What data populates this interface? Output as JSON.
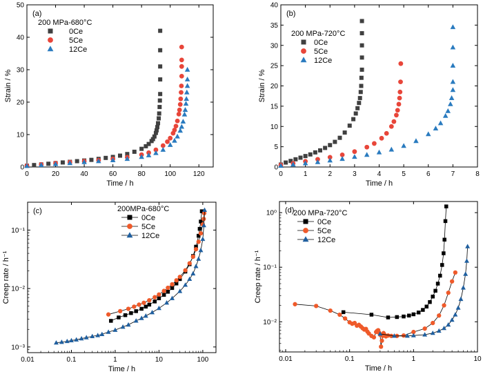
{
  "colors": {
    "0Ce": "#404040",
    "5Ce": "#e8463a",
    "12Ce": "#2a7bbf"
  },
  "colors_cd": {
    "0Ce": "#000000",
    "5Ce": "#ef5a2a",
    "12Ce": "#1f5f9f"
  },
  "chart_data": [
    {
      "type": "scatter",
      "panel": "(a)",
      "legend_title": "200 MPa-680°C",
      "xlabel": "Time / h",
      "ylabel": "Strain / %",
      "xlim": [
        0,
        130
      ],
      "ylim": [
        0,
        50
      ],
      "xticks": [
        0,
        20,
        40,
        60,
        80,
        100,
        120
      ],
      "yticks": [
        0,
        10,
        20,
        30,
        40,
        50
      ],
      "series": [
        {
          "name": "0Ce",
          "marker": "square",
          "x": [
            0,
            5,
            10,
            15,
            20,
            25,
            30,
            35,
            40,
            45,
            50,
            55,
            60,
            65,
            70,
            75,
            80,
            83,
            85,
            87,
            88,
            89,
            90,
            90.5,
            91,
            91.5,
            92,
            92.3,
            92.6,
            92.8,
            93,
            93,
            93,
            93,
            93
          ],
          "y": [
            0.4,
            0.6,
            0.8,
            1.0,
            1.2,
            1.4,
            1.6,
            1.8,
            2.0,
            2.2,
            2.5,
            2.8,
            3.1,
            3.5,
            4.0,
            4.7,
            5.6,
            6.4,
            7.1,
            8.0,
            8.6,
            9.4,
            10.5,
            11.3,
            12.3,
            13.5,
            15.0,
            16.5,
            18.5,
            20.5,
            22.5,
            27,
            31,
            36,
            42
          ]
        },
        {
          "name": "5Ce",
          "marker": "circle",
          "x": [
            0,
            10,
            20,
            30,
            40,
            50,
            60,
            70,
            80,
            85,
            90,
            95,
            98,
            100,
            102,
            103,
            104,
            105,
            106,
            106.5,
            107,
            107.3,
            107.6,
            107.8,
            108,
            108,
            108,
            108
          ],
          "y": [
            0.4,
            0.8,
            1.2,
            1.5,
            1.8,
            2.1,
            2.5,
            3.0,
            3.8,
            4.4,
            5.3,
            6.6,
            7.8,
            8.9,
            10.4,
            11.4,
            12.6,
            14.2,
            16.3,
            17.6,
            19.3,
            21,
            23,
            25,
            28,
            31,
            33,
            37
          ]
        },
        {
          "name": "12Ce",
          "marker": "triangle",
          "x": [
            0,
            10,
            20,
            30,
            40,
            50,
            60,
            70,
            80,
            85,
            90,
            95,
            100,
            103,
            105,
            107,
            108,
            109,
            110,
            110.5,
            111,
            111.3,
            111.6,
            112,
            112,
            112
          ],
          "y": [
            0.3,
            0.6,
            0.9,
            1.2,
            1.5,
            1.8,
            2.1,
            2.5,
            3.1,
            3.6,
            4.3,
            5.3,
            6.8,
            8.1,
            9.4,
            11.2,
            12.4,
            14.0,
            16.2,
            17.6,
            19.5,
            21,
            23,
            25,
            27,
            30
          ]
        }
      ]
    },
    {
      "type": "scatter",
      "panel": "(b)",
      "legend_title": "200 MPa-720°C",
      "xlabel": "Time / h",
      "ylabel": "Strain / %",
      "xlim": [
        0,
        8
      ],
      "ylim": [
        0,
        40
      ],
      "xticks": [
        0,
        1,
        2,
        3,
        4,
        5,
        6,
        7,
        8
      ],
      "yticks": [
        0,
        5,
        10,
        15,
        20,
        25,
        30,
        35,
        40
      ],
      "series": [
        {
          "name": "0Ce",
          "marker": "square",
          "x": [
            0,
            0.2,
            0.4,
            0.6,
            0.8,
            1.0,
            1.2,
            1.4,
            1.6,
            1.8,
            2.0,
            2.2,
            2.4,
            2.6,
            2.8,
            2.95,
            3.05,
            3.12,
            3.18,
            3.22,
            3.25,
            3.27,
            3.28,
            3.3,
            3.3,
            3.3,
            3.3,
            3.3
          ],
          "y": [
            0.6,
            1.1,
            1.5,
            1.9,
            2.3,
            2.7,
            3.1,
            3.6,
            4.1,
            4.7,
            5.4,
            6.2,
            7.2,
            8.5,
            10.2,
            11.8,
            13.2,
            14.5,
            15.8,
            17.0,
            18.5,
            20,
            22,
            24,
            27,
            30,
            33,
            36
          ]
        },
        {
          "name": "5Ce",
          "marker": "circle",
          "x": [
            0,
            0.5,
            1.0,
            1.5,
            2.0,
            2.5,
            3.0,
            3.5,
            3.8,
            4.1,
            4.3,
            4.5,
            4.6,
            4.7,
            4.75,
            4.8,
            4.83,
            4.85,
            4.87,
            4.88
          ],
          "y": [
            0.5,
            0.9,
            1.4,
            1.9,
            2.4,
            3.0,
            3.8,
            4.9,
            5.8,
            7.1,
            8.3,
            10.0,
            11.2,
            12.8,
            14,
            15.5,
            17,
            18.5,
            21,
            25.5
          ]
        },
        {
          "name": "12Ce",
          "marker": "triangle",
          "x": [
            0,
            0.5,
            1.0,
            1.5,
            2.0,
            2.5,
            3.0,
            3.5,
            4.0,
            4.5,
            5.0,
            5.5,
            6.0,
            6.3,
            6.5,
            6.7,
            6.8,
            6.9,
            6.95,
            7.0,
            7.0,
            7.0,
            7.0,
            7.0
          ],
          "y": [
            0.3,
            0.6,
            0.9,
            1.2,
            1.6,
            2.0,
            2.5,
            3.0,
            3.6,
            4.3,
            5.2,
            6.4,
            8.1,
            9.5,
            10.8,
            12.6,
            13.8,
            15.5,
            17,
            19,
            21,
            25,
            29.5,
            34.5
          ]
        }
      ]
    },
    {
      "type": "line",
      "panel": "(c)",
      "legend_title": "200MPa-680°C",
      "xlabel": "Time / h",
      "ylabel": "Creep rate / h⁻¹",
      "xscale": "log",
      "yscale": "log",
      "xlim": [
        0.01,
        200
      ],
      "ylim": [
        0.0008,
        0.3
      ],
      "xticks": [
        0.01,
        0.1,
        1,
        10,
        100
      ],
      "xticklabels": [
        "0.01",
        "0.1",
        "1",
        "10",
        "100"
      ],
      "yticks": [
        0.001,
        0.01,
        0.1
      ],
      "yticklabels": [
        "10⁻³",
        "10⁻²",
        "10⁻¹"
      ],
      "series": [
        {
          "name": "0Ce",
          "marker": "square",
          "x": [
            0.8,
            1.2,
            1.7,
            2.3,
            3,
            4,
            5,
            6,
            8,
            10,
            13,
            16,
            20,
            25,
            30,
            40,
            50,
            60,
            70,
            80,
            85,
            90,
            95
          ],
          "y": [
            0.0028,
            0.0032,
            0.0035,
            0.0038,
            0.0041,
            0.0045,
            0.0049,
            0.0053,
            0.006,
            0.0068,
            0.0078,
            0.0088,
            0.0102,
            0.0122,
            0.0145,
            0.0195,
            0.026,
            0.036,
            0.052,
            0.08,
            0.105,
            0.14,
            0.21
          ]
        },
        {
          "name": "5Ce",
          "marker": "circle",
          "x": [
            0.7,
            1.3,
            2,
            2.7,
            3.5,
            4.5,
            6,
            8,
            10,
            13,
            16,
            20,
            25,
            30,
            40,
            50,
            60,
            70,
            80,
            90,
            100,
            105,
            108
          ],
          "y": [
            0.0036,
            0.0041,
            0.0045,
            0.0049,
            0.0053,
            0.0057,
            0.0063,
            0.0071,
            0.0079,
            0.0091,
            0.0103,
            0.0118,
            0.0138,
            0.0158,
            0.0205,
            0.027,
            0.035,
            0.047,
            0.063,
            0.088,
            0.125,
            0.155,
            0.195
          ]
        },
        {
          "name": "12Ce",
          "marker": "triangle",
          "x": [
            0.045,
            0.06,
            0.08,
            0.1,
            0.13,
            0.17,
            0.22,
            0.3,
            0.4,
            0.5,
            0.7,
            1,
            1.5,
            2,
            3,
            4,
            5,
            7,
            10,
            15,
            20,
            30,
            40,
            50,
            60,
            70,
            80,
            90,
            100,
            106,
            110
          ],
          "y": [
            0.00118,
            0.00121,
            0.00125,
            0.00129,
            0.00133,
            0.00139,
            0.00145,
            0.00152,
            0.00158,
            0.00165,
            0.0018,
            0.00195,
            0.0022,
            0.0024,
            0.0028,
            0.0031,
            0.0034,
            0.0039,
            0.0046,
            0.0057,
            0.0068,
            0.009,
            0.0115,
            0.0145,
            0.018,
            0.024,
            0.032,
            0.045,
            0.07,
            0.12,
            0.22
          ]
        }
      ]
    },
    {
      "type": "line",
      "panel": "(d)",
      "legend_title": "200 MPa-720°C",
      "xlabel": "Time / h",
      "ylabel": "Creep rate / h⁻¹",
      "xscale": "log",
      "yscale": "log",
      "xlim": [
        0.008,
        10
      ],
      "ylim": [
        0.0028,
        1.6
      ],
      "xticks": [
        0.01,
        0.1,
        1,
        10
      ],
      "xticklabels": [
        "0.01",
        "0.1",
        "1",
        "10"
      ],
      "yticks": [
        0.01,
        0.1,
        1
      ],
      "yticklabels": [
        "10⁻²",
        "10⁻¹",
        "10⁰"
      ],
      "series": [
        {
          "name": "0Ce",
          "marker": "square",
          "x": [
            0.08,
            0.22,
            0.4,
            0.55,
            0.7,
            0.85,
            1.0,
            1.2,
            1.4,
            1.6,
            1.8,
            2.0,
            2.2,
            2.4,
            2.6,
            2.8,
            2.95,
            3.05,
            3.15,
            3.25
          ],
          "y": [
            0.015,
            0.0135,
            0.012,
            0.0122,
            0.0125,
            0.013,
            0.0137,
            0.0148,
            0.0165,
            0.019,
            0.023,
            0.029,
            0.037,
            0.05,
            0.07,
            0.11,
            0.18,
            0.32,
            0.7,
            1.3
          ]
        },
        {
          "name": "5Ce",
          "marker": "circle",
          "x": [
            0.014,
            0.03,
            0.05,
            0.07,
            0.085,
            0.1,
            0.11,
            0.12,
            0.13,
            0.14,
            0.15,
            0.16,
            0.17,
            0.18,
            0.19,
            0.2,
            0.22,
            0.24,
            0.26,
            0.27,
            0.28,
            0.29,
            0.3,
            0.31,
            0.32,
            0.33,
            0.34,
            0.35,
            0.37,
            0.4,
            0.45,
            0.55,
            0.7,
            1.0,
            1.5,
            2.0,
            2.5,
            3.0,
            3.5,
            4.0,
            4.5
          ],
          "y": [
            0.021,
            0.0195,
            0.016,
            0.0135,
            0.0115,
            0.0098,
            0.0092,
            0.0095,
            0.0085,
            0.0088,
            0.0082,
            0.0076,
            0.0072,
            0.0074,
            0.0066,
            0.0061,
            0.0055,
            0.0052,
            0.0065,
            0.0068,
            0.007,
            0.0063,
            0.0058,
            0.0035,
            0.0045,
            0.0055,
            0.0062,
            0.0058,
            0.0054,
            0.0056,
            0.0055,
            0.0055,
            0.0056,
            0.0065,
            0.0075,
            0.0095,
            0.013,
            0.02,
            0.034,
            0.055,
            0.08
          ]
        },
        {
          "name": "12Ce",
          "marker": "triangle",
          "x": [
            0.3,
            0.5,
            0.8,
            1.0,
            1.5,
            2.0,
            2.5,
            3.0,
            3.5,
            4.0,
            4.5,
            5.0,
            5.5,
            6.0,
            6.5,
            6.8,
            7.0
          ],
          "y": [
            0.006,
            0.0055,
            0.0055,
            0.0056,
            0.0058,
            0.0062,
            0.0068,
            0.0076,
            0.0088,
            0.0108,
            0.0135,
            0.018,
            0.026,
            0.042,
            0.075,
            0.13,
            0.24
          ]
        }
      ]
    }
  ]
}
